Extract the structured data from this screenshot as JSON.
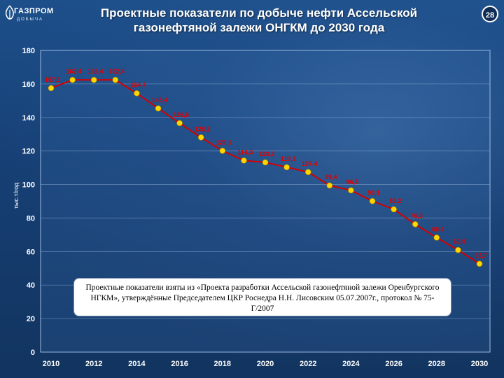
{
  "header": {
    "title_line1": "Проектные показатели по добыче нефти Ассельской",
    "title_line2": "газонефтяной залежи ОНГКМ до 2030 года",
    "page_number": "28"
  },
  "logo": {
    "main": "ГАЗПРОМ",
    "sub": "ДОБЫЧА"
  },
  "note": {
    "text": "Проектные показатели взяты из «Проекта разработки Ассельской газонефтяной залежи Оренбургского НГКМ», утверждённые Председателем ЦКР Роснедра Н.Н. Лисовским 05.07.2007г., протокол № 75-Г/2007"
  },
  "colors": {
    "line": "#d40000",
    "marker": "#ffd700",
    "label": "#e00000",
    "axis_text": "#ffffff",
    "grid": "#8fb0d8"
  },
  "chart_data": {
    "type": "line",
    "title": "",
    "xlabel": "",
    "ylabel": "тыс.т/год",
    "ylim": [
      0,
      180
    ],
    "yticks": [
      0,
      20,
      40,
      60,
      80,
      100,
      120,
      140,
      160,
      180
    ],
    "xticks": [
      "2010",
      "2012",
      "2014",
      "2016",
      "2018",
      "2020",
      "2022",
      "2024",
      "2026",
      "2028",
      "2030"
    ],
    "x": [
      2010,
      2011,
      2012,
      2013,
      2014,
      2015,
      2016,
      2017,
      2018,
      2019,
      2020,
      2021,
      2022,
      2023,
      2024,
      2025,
      2026,
      2027,
      2028,
      2029,
      2030
    ],
    "values": [
      157.5,
      162.4,
      162.4,
      162.4,
      154.4,
      145.4,
      136.6,
      128.1,
      120.1,
      114.3,
      113.2,
      110.3,
      107.4,
      99.4,
      96.5,
      90.1,
      85.2,
      76.3,
      68.3,
      60.9,
      52.7
    ],
    "data_labels": [
      "157,5",
      "162,4",
      "162,4",
      "162,4",
      "154,4",
      "145,4",
      "136,6",
      "128,1",
      "120,1",
      "114,3",
      "113,2",
      "110,3",
      "107,4",
      "99,4",
      "96,5",
      "90,1",
      "85,2",
      "76,3",
      "68,3",
      "60,9",
      "52,7"
    ],
    "grid": true
  }
}
